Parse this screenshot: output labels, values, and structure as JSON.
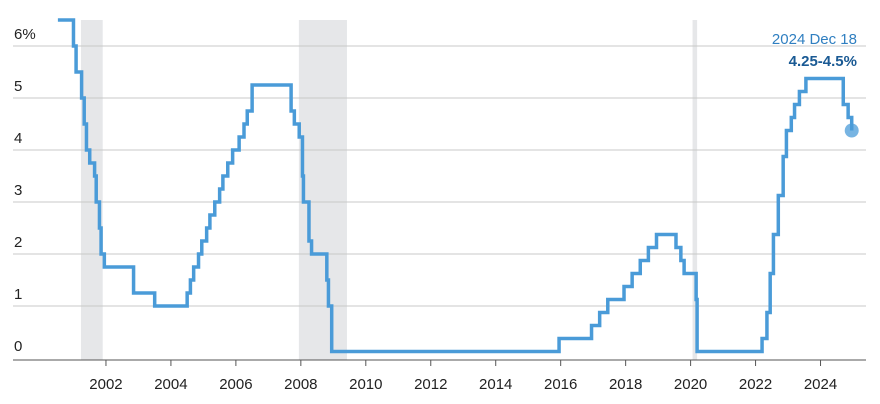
{
  "chart_data": {
    "type": "step",
    "annotation_date": "2024 Dec 18",
    "annotation_value": "4.25-4.5%",
    "color": "#4a9bd8",
    "shade_color": "#e6e7e9",
    "shaded_ranges": [
      [
        2001.23,
        2001.9
      ],
      [
        2007.94,
        2009.42
      ],
      [
        2020.06,
        2020.2
      ]
    ],
    "x": [
      2000.52,
      2001.0,
      2001.08,
      2001.25,
      2001.33,
      2001.4,
      2001.5,
      2001.65,
      2001.7,
      2001.8,
      2001.85,
      2001.95,
      2002.85,
      2003.5,
      2004.5,
      2004.6,
      2004.7,
      2004.85,
      2004.95,
      2005.1,
      2005.2,
      2005.35,
      2005.5,
      2005.6,
      2005.75,
      2005.9,
      2006.1,
      2006.25,
      2006.35,
      2006.5,
      2007.7,
      2007.8,
      2007.95,
      2008.05,
      2008.08,
      2008.25,
      2008.33,
      2008.8,
      2008.85,
      2008.95,
      2015.95,
      2016.95,
      2017.2,
      2017.45,
      2017.95,
      2018.2,
      2018.45,
      2018.7,
      2018.95,
      2019.55,
      2019.7,
      2019.8,
      2020.17,
      2020.2,
      2022.2,
      2022.35,
      2022.45,
      2022.55,
      2022.7,
      2022.85,
      2022.95,
      2023.1,
      2023.2,
      2023.35,
      2023.55,
      2024.7,
      2024.85,
      2024.96
    ],
    "values": [
      6.5,
      6.0,
      5.5,
      5.0,
      4.5,
      4.0,
      3.75,
      3.5,
      3.0,
      2.5,
      2.0,
      1.75,
      1.25,
      1.0,
      1.25,
      1.5,
      1.75,
      2.0,
      2.25,
      2.5,
      2.75,
      3.0,
      3.25,
      3.5,
      3.75,
      4.0,
      4.25,
      4.5,
      4.75,
      5.25,
      4.75,
      4.5,
      4.25,
      3.5,
      3.0,
      2.25,
      2.0,
      1.5,
      1.0,
      0.125,
      0.375,
      0.625,
      0.875,
      1.125,
      1.375,
      1.625,
      1.875,
      2.125,
      2.375,
      2.125,
      1.875,
      1.625,
      1.125,
      0.125,
      0.375,
      0.875,
      1.625,
      2.375,
      3.125,
      3.875,
      4.375,
      4.625,
      4.875,
      5.125,
      5.375,
      4.875,
      4.625,
      4.375
    ],
    "xlim": [
      2000,
      2025.4
    ],
    "ylim": [
      0,
      6.5
    ],
    "xticks": [
      2002,
      2004,
      2006,
      2008,
      2010,
      2012,
      2014,
      2016,
      2018,
      2020,
      2022,
      2024
    ],
    "yticks": [
      0,
      1,
      2,
      3,
      4,
      5,
      {
        "value": 6,
        "label": "6%"
      }
    ],
    "grid": true
  }
}
